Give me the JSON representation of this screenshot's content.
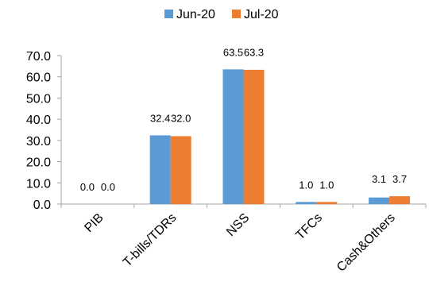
{
  "chart_data": {
    "type": "bar",
    "categories": [
      "PIB",
      "T-bills/TDRs",
      "NSS",
      "TFCs",
      "Cash&Others"
    ],
    "series": [
      {
        "name": "Jun-20",
        "color": "#5b9bd5",
        "values": [
          0.0,
          32.4,
          63.5,
          1.0,
          3.1
        ],
        "labels": [
          "0.0",
          "32.4",
          "63.5",
          "1.0",
          "3.1"
        ]
      },
      {
        "name": "Jul-20",
        "color": "#ed7d31",
        "values": [
          0.0,
          32.0,
          63.3,
          1.0,
          3.7
        ],
        "labels": [
          "0.0",
          "32.0",
          "63.3",
          "1.0",
          "3.7"
        ]
      }
    ],
    "yticks": [
      "0.0",
      "10.0",
      "20.0",
      "30.0",
      "40.0",
      "50.0",
      "60.0",
      "70.0"
    ],
    "ylim": [
      0,
      70
    ],
    "legend_position": "top-center",
    "grid": false,
    "title": "",
    "xlabel": "",
    "ylabel": ""
  }
}
